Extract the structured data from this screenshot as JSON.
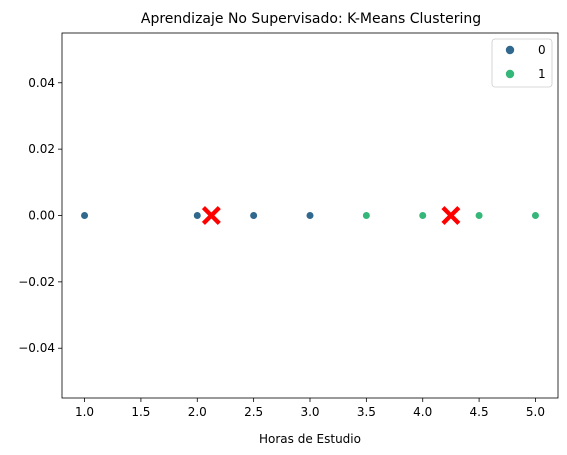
{
  "chart_data": {
    "type": "scatter",
    "title": "Aprendizaje No Supervisado: K-Means Clustering",
    "xlabel": "Horas de Estudio",
    "ylabel": "",
    "xlim": [
      0.8,
      5.2
    ],
    "ylim": [
      -0.055,
      0.055
    ],
    "xticks": [
      "1.0",
      "1.5",
      "2.0",
      "2.5",
      "3.0",
      "3.5",
      "4.0",
      "4.5",
      "5.0"
    ],
    "xtick_values": [
      1.0,
      1.5,
      2.0,
      2.5,
      3.0,
      3.5,
      4.0,
      4.5,
      5.0
    ],
    "yticks": [
      "−0.04",
      "−0.02",
      "0.00",
      "0.02",
      "0.04"
    ],
    "ytick_values": [
      -0.04,
      -0.02,
      0.0,
      0.02,
      0.04
    ],
    "grid": false,
    "legend": "top-right",
    "series": [
      {
        "name": "0",
        "color": "#31688e",
        "x": [
          1.0,
          2.0,
          2.5,
          3.0
        ],
        "y": [
          0,
          0,
          0,
          0
        ]
      },
      {
        "name": "1",
        "color": "#35b779",
        "x": [
          3.5,
          4.0,
          4.5,
          5.0
        ],
        "y": [
          0,
          0,
          0,
          0
        ]
      }
    ],
    "centroids": {
      "color": "#ff0000",
      "marker": "X",
      "x": [
        2.125,
        4.25
      ],
      "y": [
        0,
        0
      ]
    }
  }
}
